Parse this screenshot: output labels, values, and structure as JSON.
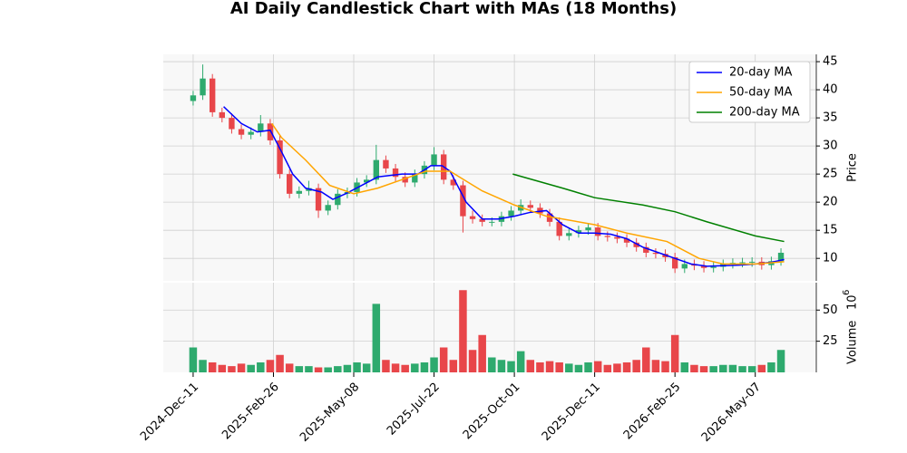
{
  "chart_data": {
    "type": "candlestick",
    "title": "AI Daily Candlestick Chart with MAs (18 Months)",
    "x": [
      0,
      6,
      12,
      18,
      24,
      30,
      36,
      42,
      48,
      54,
      60,
      66,
      72,
      78,
      84,
      90,
      96,
      102,
      108,
      114,
      120,
      126,
      132,
      138,
      144,
      150,
      156,
      162,
      168,
      174,
      180,
      186,
      192,
      198,
      204,
      210,
      216,
      222,
      228,
      234,
      240,
      246,
      252,
      258,
      264,
      270,
      276,
      282,
      288,
      294,
      300,
      306,
      312,
      318,
      324,
      330,
      336,
      342,
      348,
      354,
      360,
      366
    ],
    "open": [
      38,
      39,
      42,
      36,
      35,
      33,
      32,
      32.5,
      34,
      31,
      25,
      21.5,
      22,
      22.5,
      18.5,
      19.5,
      21.5,
      21.8,
      23.5,
      24,
      27.5,
      26,
      24.5,
      23.5,
      25,
      26.5,
      28.5,
      24,
      23,
      17.5,
      17,
      16.5,
      16.5,
      17.5,
      18.5,
      19.5,
      19,
      18,
      16.5,
      14,
      14.5,
      15,
      15.5,
      14,
      13.8,
      13.5,
      12.8,
      12,
      11,
      10.8,
      10.2,
      8.2,
      9,
      8.7,
      8.3,
      8.5,
      9,
      9.2,
      9.3,
      9.4,
      8.8,
      9.5
    ],
    "high": [
      39.8,
      44.5,
      42.8,
      36.8,
      35.8,
      33.8,
      33.3,
      35.5,
      34.8,
      31.8,
      25.8,
      22.8,
      23.8,
      23.3,
      20.3,
      22.3,
      22.6,
      24.3,
      24.8,
      30.2,
      28.3,
      26.8,
      25.3,
      25.8,
      27.3,
      29.8,
      29.3,
      24.8,
      23.8,
      18.5,
      17.8,
      17.3,
      18.3,
      19.3,
      20.5,
      20.3,
      19.8,
      18.8,
      17.3,
      15.3,
      15.8,
      16.3,
      16.3,
      14.8,
      14.6,
      14.3,
      13.6,
      12.8,
      11.8,
      11.6,
      11,
      9.8,
      9.8,
      9.5,
      9.3,
      9.8,
      10,
      10.1,
      10.2,
      10.2,
      10.3,
      11.8
    ],
    "low": [
      37.2,
      38.2,
      35.2,
      34.2,
      32.2,
      31.2,
      31.2,
      31.7,
      30.2,
      24.2,
      20.7,
      20.7,
      21.2,
      17.2,
      17.7,
      18.7,
      20.7,
      21,
      22.7,
      23.2,
      25.2,
      23.7,
      22.7,
      22.7,
      24.2,
      25.7,
      23.2,
      22.2,
      14.6,
      16.2,
      15.7,
      15.7,
      15.7,
      16.7,
      17.7,
      18.2,
      17.2,
      15.7,
      13.2,
      13.2,
      13.7,
      14.2,
      13.2,
      13,
      12.7,
      12,
      11.2,
      10.2,
      10,
      9.4,
      7.4,
      7.4,
      7.9,
      7.5,
      7.5,
      7.7,
      8.2,
      8.4,
      8.5,
      8,
      8,
      8.7
    ],
    "close": [
      39,
      42,
      36,
      35,
      33,
      32,
      32.5,
      34,
      31,
      25,
      21.5,
      22,
      22.5,
      18.5,
      19.5,
      21.5,
      21.8,
      23.5,
      24,
      27.5,
      26,
      24.5,
      23.5,
      25,
      26.5,
      28.5,
      24,
      23,
      17.5,
      17,
      16.5,
      16.5,
      17.5,
      18.5,
      19.5,
      19,
      18,
      16.5,
      14,
      14.5,
      15,
      15.5,
      14,
      13.8,
      13.5,
      12.8,
      12,
      11,
      10.8,
      10.2,
      8.2,
      9,
      8.7,
      8.3,
      8.5,
      9,
      9.2,
      9.3,
      9.4,
      8.8,
      9.5,
      11
    ],
    "volume": [
      20,
      10,
      8,
      6,
      5,
      7,
      6,
      8,
      10,
      14,
      7,
      5,
      5,
      4,
      4,
      5,
      6,
      8,
      7,
      55,
      10,
      7,
      6,
      7,
      8,
      12,
      20,
      10,
      66,
      18,
      30,
      12,
      10,
      9,
      17,
      10,
      8,
      9,
      8,
      7,
      6,
      8,
      9,
      6,
      7,
      8,
      10,
      20,
      10,
      9,
      30,
      8,
      6,
      5,
      5,
      6,
      6,
      5,
      5,
      6,
      8,
      18
    ],
    "up_color": "#2eaa6e",
    "down_color": "#e8464a",
    "xlim": [
      -18.6,
      388
    ],
    "xticks": [
      {
        "value": 0,
        "label": "2024-Dec-11"
      },
      {
        "value": 50,
        "label": "2025-Feb-26"
      },
      {
        "value": 100,
        "label": "2025-May-08"
      },
      {
        "value": 150,
        "label": "2025-Jul-22"
      },
      {
        "value": 200,
        "label": "2025-Oct-01"
      },
      {
        "value": 250,
        "label": "2025-Dec-11"
      },
      {
        "value": 300,
        "label": "2026-Feb-25"
      },
      {
        "value": 350,
        "label": "2026-May-07"
      }
    ],
    "ylim": [
      6,
      46.3
    ],
    "yticks": [
      10,
      15,
      20,
      25,
      30,
      35,
      40,
      45
    ],
    "ylabel": "Price",
    "volume_ylim": [
      0,
      72
    ],
    "volume_yticks": [
      25,
      50
    ],
    "volume_label": "Volume",
    "volume_multiplier": "10",
    "volume_exponent": "6",
    "grid": true,
    "legend": "upper right",
    "ma_series": [
      {
        "name": "20-day MA",
        "color": "#0000ff",
        "x": [
          19,
          30,
          40,
          48,
          55,
          62,
          70,
          80,
          87,
          95,
          105,
          115,
          130,
          140,
          148,
          155,
          160,
          170,
          180,
          190,
          200,
          210,
          220,
          230,
          240,
          250,
          260,
          270,
          280,
          290,
          300,
          310,
          320,
          330,
          340,
          350,
          360,
          368
        ],
        "values": [
          37,
          34,
          32.5,
          32.8,
          29,
          25,
          22.5,
          21.8,
          20.5,
          21.5,
          23,
          24.5,
          25,
          25,
          26.5,
          26.5,
          25.5,
          20,
          17,
          17,
          17.5,
          18.2,
          18.5,
          16,
          14.5,
          14.5,
          14.3,
          13.5,
          12,
          11,
          10,
          9,
          8.6,
          8.7,
          8.8,
          9,
          9.3,
          9.8
        ]
      },
      {
        "name": "50-day MA",
        "color": "#ffa500",
        "x": [
          49,
          55,
          70,
          85,
          100,
          115,
          130,
          145,
          160,
          180,
          200,
          220,
          250,
          270,
          295,
          315,
          330,
          350,
          368
        ],
        "values": [
          34,
          31.5,
          27.5,
          23,
          21.5,
          22.5,
          24,
          25.5,
          25.5,
          22,
          19.5,
          17.5,
          16,
          14.5,
          13,
          10,
          9,
          9,
          9.4
        ]
      },
      {
        "name": "200-day MA",
        "color": "#008000",
        "x": [
          199,
          230,
          250,
          280,
          300,
          320,
          350,
          368
        ],
        "values": [
          25,
          22.5,
          20.8,
          19.5,
          18.3,
          16.5,
          14,
          13
        ]
      }
    ]
  }
}
